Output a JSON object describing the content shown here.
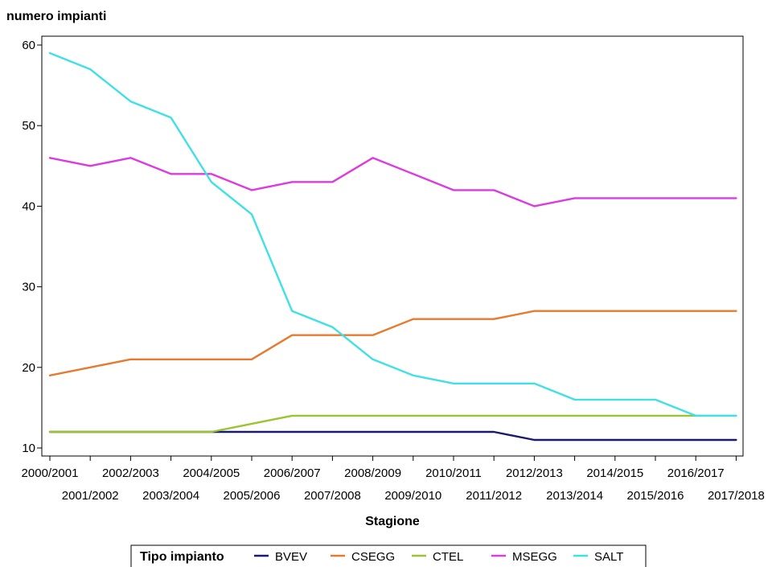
{
  "chart_data": {
    "type": "line",
    "ylabel": "numero impianti",
    "xlabel": "Stagione",
    "ylim": [
      10,
      60
    ],
    "yticks": [
      10,
      20,
      30,
      40,
      50,
      60
    ],
    "grid": false,
    "categories": [
      "2000/2001",
      "2001/2002",
      "2002/2003",
      "2003/2004",
      "2004/2005",
      "2005/2006",
      "2006/2007",
      "2007/2008",
      "2008/2009",
      "2009/2010",
      "2010/2011",
      "2011/2012",
      "2012/2013",
      "2013/2014",
      "2014/2015",
      "2015/2016",
      "2016/2017",
      "2017/2018"
    ],
    "legend_title": "Tipo impianto",
    "legend_position": "bottom",
    "series": [
      {
        "name": "BVEV",
        "color": "#1b1b6e",
        "values": [
          12,
          12,
          12,
          12,
          12,
          12,
          12,
          12,
          12,
          12,
          12,
          12,
          11,
          11,
          11,
          11,
          11,
          11
        ]
      },
      {
        "name": "CSEGG",
        "color": "#e87a2f",
        "values": [
          19,
          20,
          21,
          21,
          21,
          21,
          24,
          24,
          24,
          26,
          26,
          26,
          27,
          27,
          27,
          27,
          27,
          27
        ]
      },
      {
        "name": "CTEL",
        "color": "#9ac531",
        "values": [
          12,
          12,
          12,
          12,
          12,
          13,
          14,
          14,
          14,
          14,
          14,
          14,
          14,
          14,
          14,
          14,
          14,
          14
        ]
      },
      {
        "name": "MSEGG",
        "color": "#dc3be0",
        "values": [
          46,
          45,
          46,
          44,
          44,
          42,
          43,
          43,
          46,
          44,
          42,
          42,
          40,
          41,
          41,
          41,
          41,
          41
        ]
      },
      {
        "name": "SALT",
        "color": "#3fe0e6",
        "values": [
          59,
          57,
          53,
          51,
          43,
          39,
          27,
          25,
          21,
          19,
          18,
          18,
          18,
          16,
          16,
          16,
          14,
          14
        ]
      }
    ]
  }
}
